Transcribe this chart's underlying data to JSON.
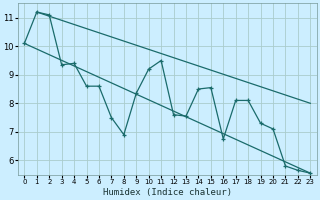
{
  "xlabel": "Humidex (Indice chaleur)",
  "background_color": "#cceeff",
  "grid_color": "#aacccc",
  "line_color": "#1a6b6b",
  "xlim": [
    -0.5,
    23.5
  ],
  "ylim": [
    5.5,
    11.5
  ],
  "yticks": [
    6,
    7,
    8,
    9,
    10,
    11
  ],
  "xticks": [
    0,
    1,
    2,
    3,
    4,
    5,
    6,
    7,
    8,
    9,
    10,
    11,
    12,
    13,
    14,
    15,
    16,
    17,
    18,
    19,
    20,
    21,
    22,
    23
  ],
  "zigzag_x": [
    0,
    1,
    2,
    3,
    4,
    5,
    6,
    7,
    8,
    9,
    10,
    11,
    12,
    13,
    14,
    15,
    16,
    17,
    18,
    19,
    20,
    21,
    22,
    23
  ],
  "zigzag_y": [
    10.1,
    11.2,
    11.1,
    9.35,
    9.4,
    8.6,
    8.6,
    7.5,
    6.9,
    8.35,
    9.2,
    9.5,
    7.6,
    7.55,
    8.5,
    8.55,
    6.75,
    8.1,
    8.1,
    7.3,
    7.1,
    5.8,
    5.65,
    5.55
  ],
  "line_top_start": 11.2,
  "line_top_end": 8.0,
  "line_top_x_start": 1,
  "line_top_x_end": 23,
  "line_bot_start": 10.1,
  "line_bot_end": 5.55,
  "line_bot_x_start": 0,
  "line_bot_x_end": 23
}
